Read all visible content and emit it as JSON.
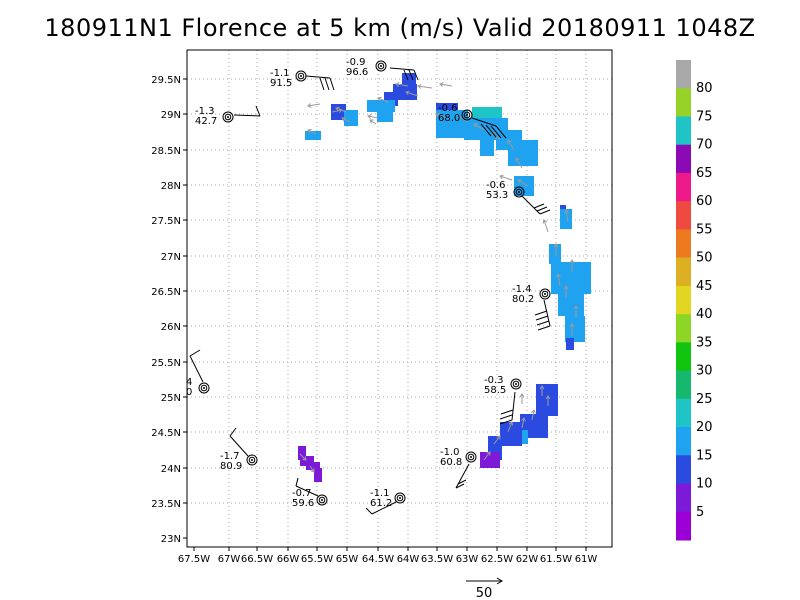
{
  "title": "180911N1 Florence at 5 km (m/s) Valid 20180911 1048Z",
  "lon_labels": [
    "67.5W",
    "67W",
    "66.5W",
    "66W",
    "65.5W",
    "65W",
    "64.5W",
    "64W",
    "63.5W",
    "63W",
    "62.5W",
    "62W",
    "61.5W",
    "61W"
  ],
  "lat_labels": [
    "29.5N",
    "29N",
    "28.5N",
    "28N",
    "27.5N",
    "27N",
    "26.5N",
    "26N",
    "25.5N",
    "25N",
    "24.5N",
    "24N",
    "23.5N",
    "23N"
  ],
  "colorbar": {
    "labels": [
      "5",
      "10",
      "15",
      "20",
      "25",
      "30",
      "35",
      "40",
      "45",
      "50",
      "55",
      "60",
      "65",
      "70",
      "75",
      "80"
    ],
    "colors": [
      "#9a00d6",
      "#7c1ad8",
      "#2a4ae0",
      "#1fa2f0",
      "#1ec4c6",
      "#16b86e",
      "#10c410",
      "#8ed626",
      "#e2d622",
      "#dcb022",
      "#ee7a20",
      "#ee4a40",
      "#ee1a8c",
      "#8c0ab4",
      "#1ec4c6",
      "#96d228",
      "#a8a8a8"
    ]
  },
  "scale_label": "50",
  "stations": [
    {
      "top": "-0.9",
      "bot": "96.6"
    },
    {
      "top": "-1.1",
      "bot": "91.5"
    },
    {
      "top": "-1.3",
      "bot": "42.7"
    },
    {
      "top": "-0.6",
      "bot": "68.0"
    },
    {
      "top": "-0.6",
      "bot": "53.3"
    },
    {
      "top": "-1.4",
      "bot": "80.2"
    },
    {
      "top": "4",
      "bot": "0"
    },
    {
      "top": "-0.3",
      "bot": "58.5"
    },
    {
      "top": "-1.7",
      "bot": "80.9"
    },
    {
      "top": "-1.0",
      "bot": "60.8"
    },
    {
      "top": "-0.7",
      "bot": "59.6"
    },
    {
      "top": "-1.1",
      "bot": "61.2"
    }
  ]
}
